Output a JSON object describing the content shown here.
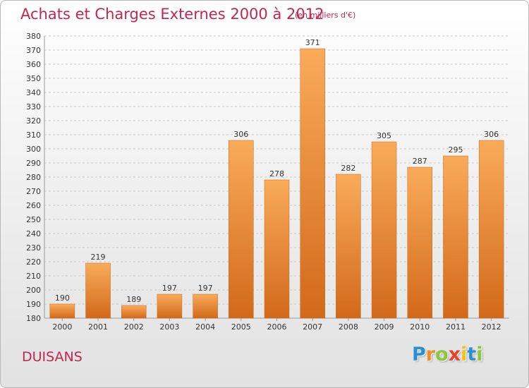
{
  "header": {
    "title": "Achats et Charges Externes 2000 à 2012",
    "subtitle": "(en milliers d'€)"
  },
  "footer": {
    "town": "DUISANS",
    "logo_letters": [
      {
        "char": "P",
        "color": "#2a8fd6"
      },
      {
        "char": "r",
        "color": "#f28c1e"
      },
      {
        "char": "o",
        "color": "#8cc63f"
      },
      {
        "char": "x",
        "color": "#e8412c"
      },
      {
        "char": "i",
        "color": "#f5c21b"
      },
      {
        "char": "t",
        "color": "#2a8fd6"
      },
      {
        "char": "i",
        "color": "#8cc63f"
      }
    ]
  },
  "chart_data": {
    "type": "bar",
    "title": "Achats et Charges Externes 2000 à 2012",
    "subtitle": "(en milliers d'€)",
    "categories": [
      "2000",
      "2001",
      "2002",
      "2003",
      "2004",
      "2005",
      "2006",
      "2007",
      "2008",
      "2009",
      "2010",
      "2011",
      "2012"
    ],
    "values": [
      190,
      219,
      189,
      197,
      197,
      306,
      278,
      371,
      282,
      305,
      287,
      295,
      306
    ],
    "ylim": [
      180,
      380
    ],
    "ytick_step": 10,
    "grid": "horizontal-dashed",
    "bar_color": "#f0922f",
    "bar_color_light": "#f9ab5a",
    "bar_color_dark": "#d2691a"
  }
}
